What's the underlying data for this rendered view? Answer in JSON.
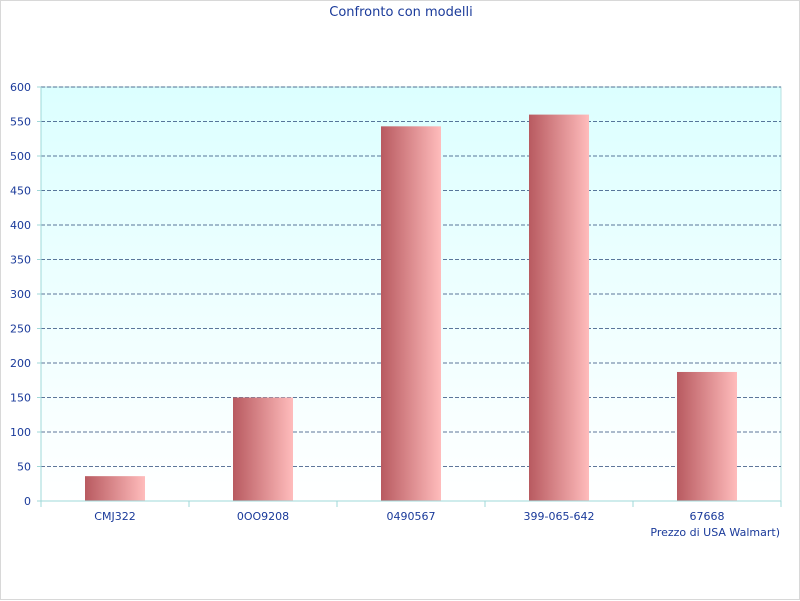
{
  "chart_data": {
    "type": "bar",
    "title": "Confronto con modelli",
    "xlabel": "Prezzo di USA Walmart)",
    "ylabel": "",
    "categories": [
      "CMJ322",
      "0OO9208",
      "0490567",
      "399-065-642",
      "67668"
    ],
    "values": [
      36,
      150,
      543,
      560,
      187
    ],
    "ylim": [
      0,
      600
    ],
    "yticks": [
      0,
      50,
      100,
      150,
      200,
      250,
      300,
      350,
      400,
      450,
      500,
      550,
      600
    ],
    "grid": true,
    "legend": "none",
    "colors": {
      "bar_dark": "#b85a60",
      "bar_light": "#ffbcbc",
      "plot_top": "#dcffff",
      "plot_bottom": "#ffffff",
      "grid": "#2a4a7a",
      "text": "#1a3a9a",
      "axis": "#9fd8d8"
    }
  }
}
